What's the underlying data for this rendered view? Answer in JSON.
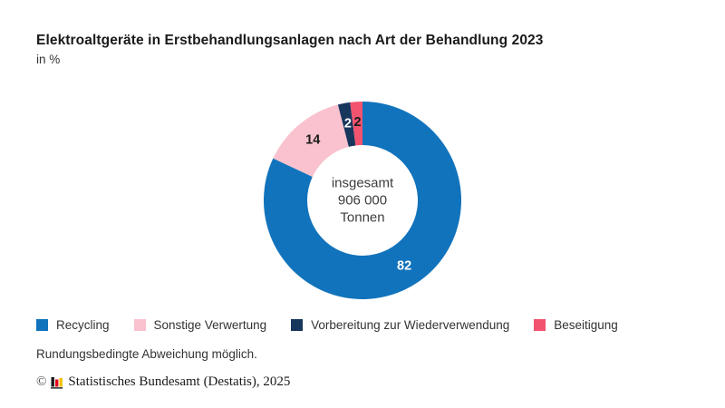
{
  "page": {
    "title": "Elektroaltgeräte in Erstbehandlungsanlagen nach Art der Behandlung 2023",
    "subtitle": "in %"
  },
  "chart_data": {
    "type": "pie",
    "variant": "donut",
    "title": "Elektroaltgeräte in Erstbehandlungsanlagen nach Art der Behandlung 2023",
    "unit": "in %",
    "direction": "clockwise",
    "start_at": "top",
    "legend_position": "bottom",
    "center_label_lines": [
      "insgesamt",
      "906 000",
      "Tonnen"
    ],
    "segments": [
      {
        "label": "Recycling",
        "value": 82,
        "color": "#1173BC",
        "value_label_color": "#FFFFFF"
      },
      {
        "label": "Sonstige Verwertung",
        "value": 14,
        "color": "#F9C2CE",
        "value_label_color": "#1A1A1A"
      },
      {
        "label": "Vorbereitung zur Wiederverwendung",
        "value": 2,
        "color": "#17365C",
        "value_label_color": "#FFFFFF"
      },
      {
        "label": "Beseitigung",
        "value": 2,
        "color": "#F2536E",
        "value_label_color": "#1A1A1A"
      }
    ]
  },
  "footer": {
    "note": "Rundungsbedingte Abweichung möglich.",
    "copyright_symbol": "©",
    "copyright_text": "Statistisches Bundesamt (Destatis), 2025",
    "logo_colors": [
      "#1A1A1A",
      "#E2001A",
      "#F6BE00"
    ]
  }
}
